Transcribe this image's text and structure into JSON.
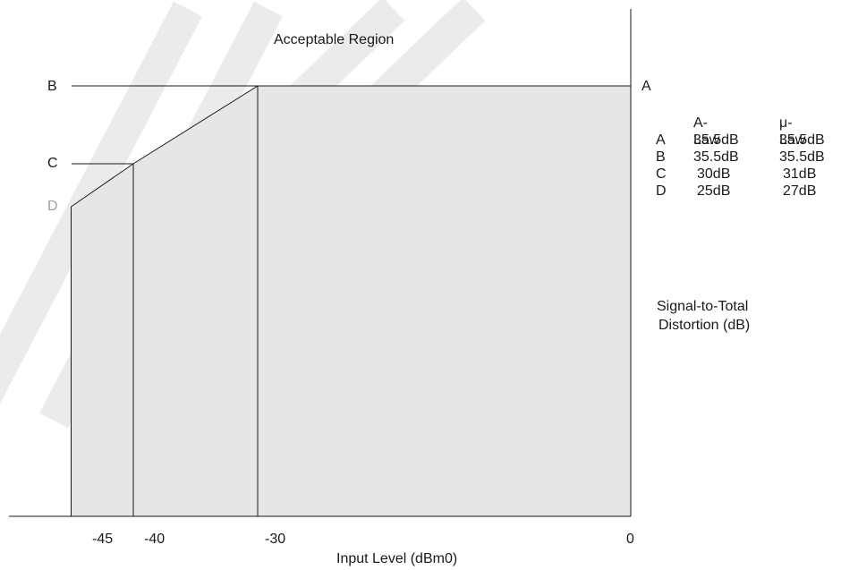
{
  "colors": {
    "fill": "#e6e6e6",
    "line": "#1a1a1a",
    "watermark": "#dcdcdc"
  },
  "chart_data": {
    "type": "area",
    "title": "Acceptable Region",
    "xlabel": "Input Level (dBm0)",
    "ylabel": "Signal-to-Total Distortion (dB)",
    "x_ticks": [
      "-45",
      "-40",
      "-30",
      "0"
    ],
    "xlim": [
      -50,
      0
    ],
    "boundary": [
      {
        "x": -45,
        "point": "D"
      },
      {
        "x": -40,
        "point": "C"
      },
      {
        "x": -30,
        "point": "B"
      },
      {
        "x": 0,
        "point": "A"
      }
    ],
    "y_markers": [
      "B",
      "C",
      "D"
    ],
    "right_marker": "A",
    "table": {
      "headers": [
        "",
        "A-Law",
        "μ-Law"
      ],
      "rows": [
        [
          "A",
          "35.5dB",
          "35.5dB"
        ],
        [
          "B",
          "35.5dB",
          "35.5dB"
        ],
        [
          "C",
          "30dB",
          "31dB"
        ],
        [
          "D",
          "25dB",
          "27dB"
        ]
      ]
    },
    "y_caption": [
      "Signal-to-Total",
      "Distortion (dB)"
    ]
  }
}
